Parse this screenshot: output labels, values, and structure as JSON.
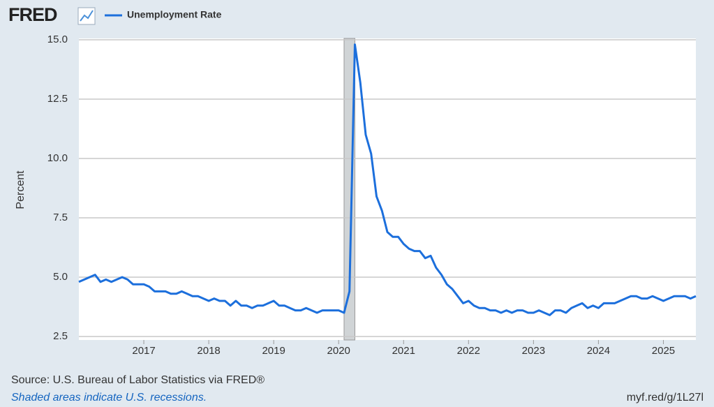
{
  "logo": "FRED",
  "chart_data": {
    "type": "line",
    "y_label": "Percent",
    "categories": [
      null,
      null,
      null,
      null,
      null,
      null,
      null,
      null,
      null,
      null,
      null,
      null,
      "2017",
      null,
      null,
      null,
      null,
      null,
      null,
      null,
      null,
      null,
      null,
      null,
      "2018",
      null,
      null,
      null,
      null,
      null,
      null,
      null,
      null,
      null,
      null,
      null,
      "2019",
      null,
      null,
      null,
      null,
      null,
      null,
      null,
      null,
      null,
      null,
      null,
      "2020",
      null,
      null,
      null,
      null,
      null,
      null,
      null,
      null,
      null,
      null,
      null,
      "2021",
      null,
      null,
      null,
      null,
      null,
      null,
      null,
      null,
      null,
      null,
      null,
      "2022",
      null,
      null,
      null,
      null,
      null,
      null,
      null,
      null,
      null,
      null,
      null,
      "2023",
      null,
      null,
      null,
      null,
      null,
      null,
      null,
      null,
      null,
      null,
      null,
      "2024",
      null,
      null,
      null,
      null,
      null,
      null,
      null,
      null,
      null,
      null,
      null,
      "2025",
      null,
      null,
      null,
      null,
      null,
      null
    ],
    "series": [
      {
        "name": "Unemployment Rate",
        "color": "#1c6fdc",
        "values": [
          4.8,
          4.9,
          5.0,
          5.1,
          4.8,
          4.9,
          4.8,
          4.9,
          5.0,
          4.9,
          4.7,
          4.7,
          4.7,
          4.6,
          4.4,
          4.4,
          4.4,
          4.3,
          4.3,
          4.4,
          4.3,
          4.2,
          4.2,
          4.1,
          4.0,
          4.1,
          4.0,
          4.0,
          3.8,
          4.0,
          3.8,
          3.8,
          3.7,
          3.8,
          3.8,
          3.9,
          4.0,
          3.8,
          3.8,
          3.7,
          3.6,
          3.6,
          3.7,
          3.6,
          3.5,
          3.6,
          3.6,
          3.6,
          3.6,
          3.5,
          4.4,
          14.8,
          13.2,
          11.0,
          10.2,
          8.4,
          7.8,
          6.9,
          6.7,
          6.7,
          6.4,
          6.2,
          6.1,
          6.1,
          5.8,
          5.9,
          5.4,
          5.1,
          4.7,
          4.5,
          4.2,
          3.9,
          4.0,
          3.8,
          3.7,
          3.7,
          3.6,
          3.6,
          3.5,
          3.6,
          3.5,
          3.6,
          3.6,
          3.5,
          3.5,
          3.6,
          3.5,
          3.4,
          3.6,
          3.6,
          3.5,
          3.7,
          3.8,
          3.9,
          3.7,
          3.8,
          3.7,
          3.9,
          3.9,
          3.9,
          4.0,
          4.1,
          4.2,
          4.2,
          4.1,
          4.1,
          4.2,
          4.1,
          4.0,
          4.1,
          4.2,
          4.2,
          4.2,
          4.1,
          4.2
        ]
      }
    ],
    "ylim": [
      2.5,
      15
    ],
    "yticks": [
      2.5,
      {
        "value": 5,
        "label": "5.0"
      },
      7.5,
      {
        "value": 10,
        "label": "10.0"
      },
      12.5,
      {
        "value": 15,
        "label": "15.0"
      }
    ],
    "grid": true,
    "recession_index": [
      49,
      51
    ],
    "recession_color": "#d0d4d6",
    "source": "Source: U.S. Bureau of Labor Statistics via FRED®",
    "note": "Shaded areas indicate U.S. recessions.",
    "url": "myf.red/g/1L27l"
  }
}
